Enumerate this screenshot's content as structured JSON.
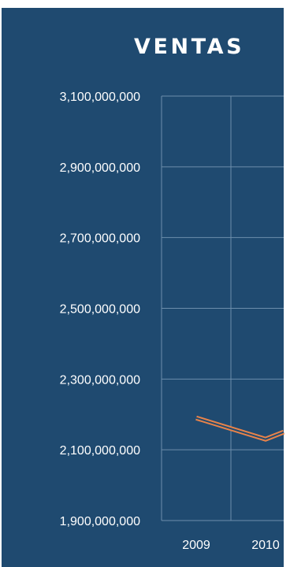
{
  "colors": {
    "background": "#1f4a70",
    "gridline": "#6d8eab",
    "series_outer": "#e8834a",
    "series_inner": "#1f4a70",
    "text": "#ffffff"
  },
  "chart_data": {
    "type": "line",
    "title": "VENTAS",
    "x": [
      "2009",
      "2010"
    ],
    "series": [
      {
        "values": [
          2190000000,
          2130000000
        ]
      }
    ],
    "ylim": [
      1900000000,
      3100000000
    ],
    "yticks": [
      1900000000,
      2100000000,
      2300000000,
      2500000000,
      2700000000,
      2900000000,
      3100000000
    ],
    "ytick_labels": [
      "1,900,000,000",
      "2,100,000,000",
      "2,300,000,000",
      "2,500,000,000",
      "2,700,000,000",
      "2,900,000,000",
      "3,100,000,000"
    ],
    "xtick_labels": [
      "2009",
      "2010"
    ],
    "grid": true,
    "legend": "none"
  }
}
